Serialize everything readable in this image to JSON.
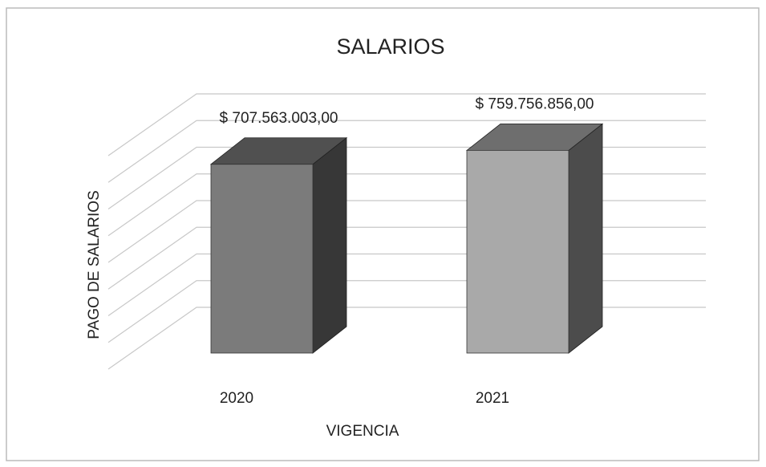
{
  "chart_data": {
    "type": "bar3d",
    "title": "SALARIOS",
    "x_label": "VIGENCIA",
    "y_label": "PAGO DE SALARIOS",
    "categories": [
      "2020",
      "2021"
    ],
    "values": [
      707563003,
      759756856
    ],
    "value_labels": [
      "$ 707.563.003,00",
      "$ 759.756.856,00"
    ],
    "colors": [
      "#7b7b7b",
      "#a9a9a9"
    ],
    "ylim": [
      0,
      800000000
    ],
    "yticks": [
      0,
      100000000,
      200000000,
      300000000,
      400000000,
      500000000,
      600000000,
      700000000,
      800000000
    ],
    "grid": true
  }
}
